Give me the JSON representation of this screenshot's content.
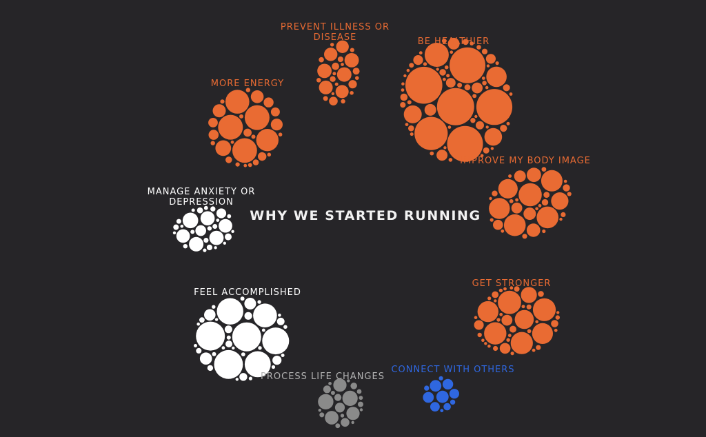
{
  "chart_data": {
    "type": "bubble-cluster",
    "title": "WHY WE STARTED RUNNING",
    "background": "#262528",
    "title_color": "#f2f2f2",
    "grid": false,
    "legend": "none",
    "categories": [
      {
        "label": [
          "PREVENT ILLNESS OR",
          "DISEASE"
        ],
        "color": "#e96b33",
        "circle_count": 75,
        "relative_size": 0.42
      },
      {
        "label": [
          "BE HEALTHIER"
        ],
        "color": "#e96b33",
        "circle_count": 240,
        "relative_size": 1.0
      },
      {
        "label": [
          "MORE ENERGY"
        ],
        "color": "#e96b33",
        "circle_count": 150,
        "relative_size": 0.68
      },
      {
        "label": [
          "IMPROVE MY BODY IMAGE"
        ],
        "color": "#e96b33",
        "circle_count": 150,
        "relative_size": 0.67
      },
      {
        "label": [
          "MANAGE ANXIETY OR",
          "DEPRESSION"
        ],
        "color": "#ffffff",
        "circle_count": 75,
        "relative_size": 0.4
      },
      {
        "label": [
          "GET STRONGER"
        ],
        "color": "#e96b33",
        "circle_count": 150,
        "relative_size": 0.62
      },
      {
        "label": [
          "FEEL ACCOMPLISHED"
        ],
        "color": "#ffffff",
        "circle_count": 200,
        "relative_size": 0.79
      },
      {
        "label": [
          "PROCESS LIFE CHANGES"
        ],
        "color": "#8a8a8a",
        "circle_count": 60,
        "relative_size": 0.3
      },
      {
        "label": [
          "CONNECT WITH OTHERS"
        ],
        "color": "#2f67e0",
        "circle_count": 40,
        "relative_size": 0.22
      }
    ]
  }
}
